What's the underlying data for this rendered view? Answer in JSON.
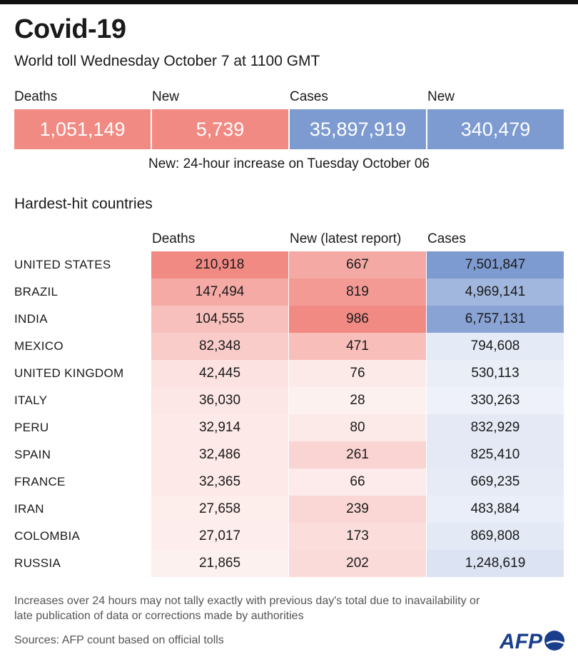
{
  "title": "Covid-19",
  "subtitle": "World toll Wednesday October 7 at 1100 GMT",
  "summary": {
    "labels": [
      "Deaths",
      "New",
      "Cases",
      "New"
    ],
    "values": [
      "1,051,149",
      "5,739",
      "35,897,919",
      "340,479"
    ],
    "colors": [
      "#f28a84",
      "#f28a84",
      "#7d9bd0",
      "#7d9bd0"
    ]
  },
  "note": "New: 24-hour increase on Tuesday October 06",
  "section_title": "Hardest-hit countries",
  "table": {
    "headers": [
      "Deaths",
      "New (latest report)",
      "Cases"
    ],
    "rows": [
      {
        "country": "UNITED STATES",
        "deaths": "210,918",
        "new": "667",
        "cases": "7,501,847",
        "deaths_n": 210918,
        "new_n": 667,
        "cases_n": 7501847
      },
      {
        "country": "BRAZIL",
        "deaths": "147,494",
        "new": "819",
        "cases": "4,969,141",
        "deaths_n": 147494,
        "new_n": 819,
        "cases_n": 4969141
      },
      {
        "country": "INDIA",
        "deaths": "104,555",
        "new": "986",
        "cases": "6,757,131",
        "deaths_n": 104555,
        "new_n": 986,
        "cases_n": 6757131
      },
      {
        "country": "MEXICO",
        "deaths": "82,348",
        "new": "471",
        "cases": "794,608",
        "deaths_n": 82348,
        "new_n": 471,
        "cases_n": 794608
      },
      {
        "country": "UNITED KINGDOM",
        "deaths": "42,445",
        "new": "76",
        "cases": "530,113",
        "deaths_n": 42445,
        "new_n": 76,
        "cases_n": 530113
      },
      {
        "country": "ITALY",
        "deaths": "36,030",
        "new": "28",
        "cases": "330,263",
        "deaths_n": 36030,
        "new_n": 28,
        "cases_n": 330263
      },
      {
        "country": "PERU",
        "deaths": "32,914",
        "new": "80",
        "cases": "832,929",
        "deaths_n": 32914,
        "new_n": 80,
        "cases_n": 832929
      },
      {
        "country": "SPAIN",
        "deaths": "32,486",
        "new": "261",
        "cases": "825,410",
        "deaths_n": 32486,
        "new_n": 261,
        "cases_n": 825410
      },
      {
        "country": "FRANCE",
        "deaths": "32,365",
        "new": "66",
        "cases": "669,235",
        "deaths_n": 32365,
        "new_n": 66,
        "cases_n": 669235
      },
      {
        "country": "IRAN",
        "deaths": "27,658",
        "new": "239",
        "cases": "483,884",
        "deaths_n": 27658,
        "new_n": 239,
        "cases_n": 483884
      },
      {
        "country": "COLOMBIA",
        "deaths": "27,017",
        "new": "173",
        "cases": "869,808",
        "deaths_n": 27017,
        "new_n": 173,
        "cases_n": 869808
      },
      {
        "country": "RUSSIA",
        "deaths": "21,865",
        "new": "202",
        "cases": "1,248,619",
        "deaths_n": 21865,
        "new_n": 202,
        "cases_n": 1248619
      }
    ]
  },
  "colors": {
    "red": "#f28a84",
    "blue": "#7d9bd0",
    "low_red": "#fdf1f0",
    "low_blue": "#eef1f9"
  },
  "footnote": "Increases over 24 hours may not tally exactly with previous day's total due to inavailability or late publication of data or corrections made by authorities",
  "sources": "Sources: AFP count based on official tolls",
  "logo": {
    "text": "AFP",
    "icon": "afp-logo-icon"
  }
}
